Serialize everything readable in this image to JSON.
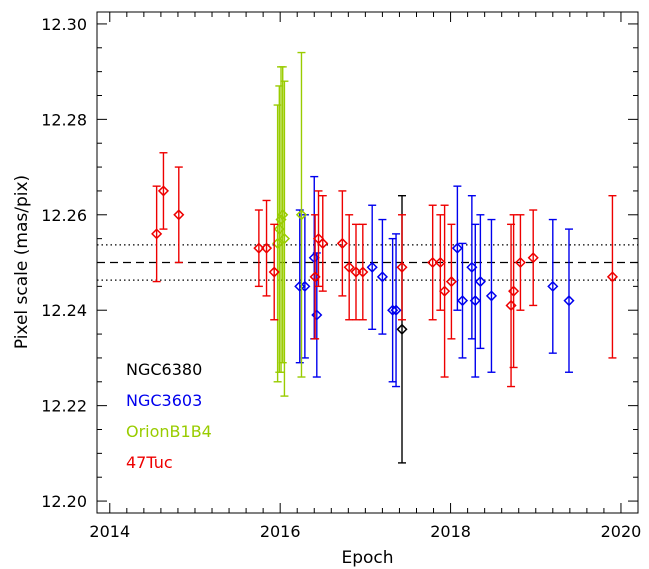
{
  "chart_data": {
    "type": "scatter",
    "xlabel": "Epoch",
    "ylabel": "Pixel scale (mas/pix)",
    "xlim": [
      2013.85,
      2020.2
    ],
    "ylim": [
      12.1975,
      12.3025
    ],
    "x_ticks": [
      2014,
      2016,
      2018,
      2020
    ],
    "x_tick_labels": [
      "2014",
      "2016",
      "2018",
      "2020"
    ],
    "y_ticks": [
      12.2,
      12.22,
      12.24,
      12.26,
      12.28,
      12.3
    ],
    "y_tick_labels": [
      "12.20",
      "12.22",
      "12.24",
      "12.26",
      "12.28",
      "12.30"
    ],
    "reference_lines": [
      {
        "style": "dashed",
        "y": 12.25
      },
      {
        "style": "dotted",
        "y": 12.2537
      },
      {
        "style": "dotted",
        "y": 12.2463
      }
    ],
    "legend_position": "bottom-left",
    "series": [
      {
        "name": "NGC6380",
        "color": "#000000",
        "points": [
          {
            "x": 2017.43,
            "y": 12.236,
            "err": 0.028
          }
        ]
      },
      {
        "name": "NGC3603",
        "color": "#0000ee",
        "points": [
          {
            "x": 2016.23,
            "y": 12.245,
            "err": 0.016
          },
          {
            "x": 2016.29,
            "y": 12.245,
            "err": 0.015
          },
          {
            "x": 2016.4,
            "y": 12.251,
            "err": 0.017
          },
          {
            "x": 2016.43,
            "y": 12.239,
            "err": 0.013
          },
          {
            "x": 2017.08,
            "y": 12.249,
            "err": 0.013
          },
          {
            "x": 2017.2,
            "y": 12.247,
            "err": 0.012
          },
          {
            "x": 2017.32,
            "y": 12.24,
            "err": 0.015
          },
          {
            "x": 2017.36,
            "y": 12.24,
            "err": 0.016
          },
          {
            "x": 2018.08,
            "y": 12.253,
            "err": 0.013
          },
          {
            "x": 2018.14,
            "y": 12.242,
            "err": 0.012
          },
          {
            "x": 2018.25,
            "y": 12.249,
            "err": 0.015
          },
          {
            "x": 2018.29,
            "y": 12.242,
            "err": 0.016
          },
          {
            "x": 2018.35,
            "y": 12.246,
            "err": 0.014
          },
          {
            "x": 2018.48,
            "y": 12.243,
            "err": 0.016
          },
          {
            "x": 2019.2,
            "y": 12.245,
            "err": 0.014
          },
          {
            "x": 2019.39,
            "y": 12.242,
            "err": 0.015
          }
        ]
      },
      {
        "name": "OrionB1B4",
        "color": "#99cc00",
        "points": [
          {
            "x": 2015.97,
            "y": 12.254,
            "err": 0.029
          },
          {
            "x": 2015.99,
            "y": 12.257,
            "err": 0.03
          },
          {
            "x": 2016.01,
            "y": 12.259,
            "err": 0.032
          },
          {
            "x": 2016.03,
            "y": 12.26,
            "err": 0.031
          },
          {
            "x": 2016.05,
            "y": 12.255,
            "err": 0.033
          },
          {
            "x": 2016.25,
            "y": 12.26,
            "err": 0.034
          }
        ]
      },
      {
        "name": "47Tuc",
        "color": "#ee0000",
        "points": [
          {
            "x": 2014.55,
            "y": 12.256,
            "err": 0.01
          },
          {
            "x": 2014.63,
            "y": 12.265,
            "err": 0.008
          },
          {
            "x": 2014.81,
            "y": 12.26,
            "err": 0.01
          },
          {
            "x": 2015.75,
            "y": 12.253,
            "err": 0.008
          },
          {
            "x": 2015.84,
            "y": 12.253,
            "err": 0.01
          },
          {
            "x": 2015.93,
            "y": 12.248,
            "err": 0.01
          },
          {
            "x": 2016.41,
            "y": 12.247,
            "err": 0.013
          },
          {
            "x": 2016.45,
            "y": 12.255,
            "err": 0.01
          },
          {
            "x": 2016.5,
            "y": 12.254,
            "err": 0.01
          },
          {
            "x": 2016.73,
            "y": 12.254,
            "err": 0.011
          },
          {
            "x": 2016.81,
            "y": 12.249,
            "err": 0.011
          },
          {
            "x": 2016.89,
            "y": 12.248,
            "err": 0.01
          },
          {
            "x": 2016.97,
            "y": 12.248,
            "err": 0.01
          },
          {
            "x": 2017.43,
            "y": 12.249,
            "err": 0.011
          },
          {
            "x": 2017.79,
            "y": 12.25,
            "err": 0.012
          },
          {
            "x": 2017.88,
            "y": 12.25,
            "err": 0.01
          },
          {
            "x": 2017.93,
            "y": 12.244,
            "err": 0.018
          },
          {
            "x": 2018.01,
            "y": 12.246,
            "err": 0.012
          },
          {
            "x": 2018.71,
            "y": 12.241,
            "err": 0.017
          },
          {
            "x": 2018.74,
            "y": 12.244,
            "err": 0.016
          },
          {
            "x": 2018.82,
            "y": 12.25,
            "err": 0.01
          },
          {
            "x": 2018.97,
            "y": 12.251,
            "err": 0.01
          },
          {
            "x": 2019.9,
            "y": 12.247,
            "err": 0.017
          }
        ]
      }
    ]
  }
}
